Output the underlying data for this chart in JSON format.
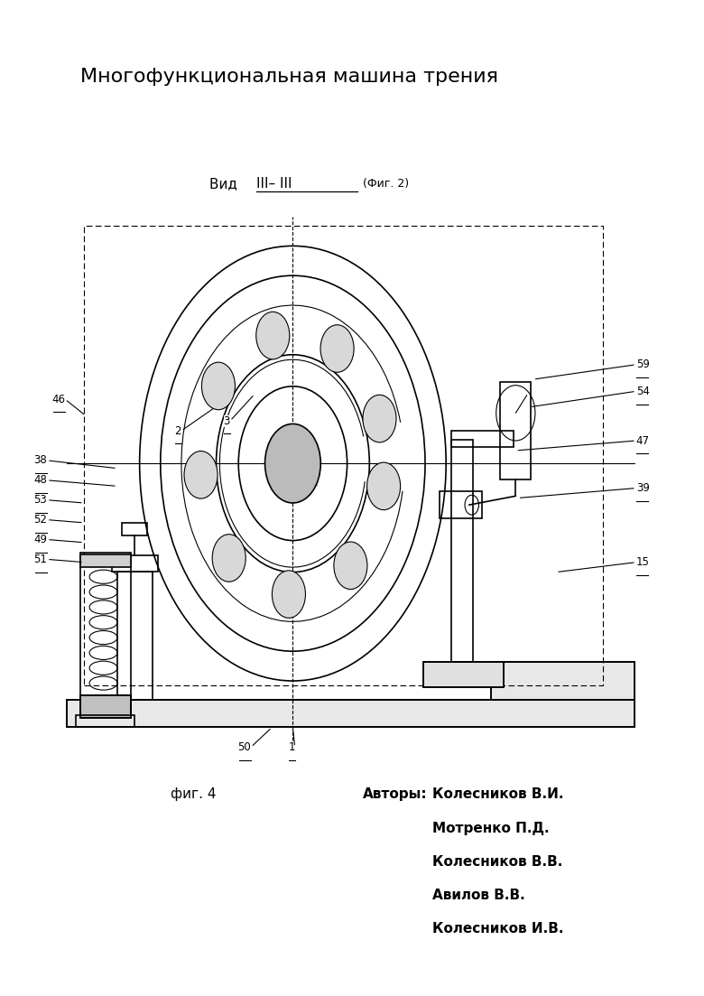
{
  "title": "Многофункциональная машина трения",
  "fig_label": "фиг. 4",
  "authors_label": "Авторы:",
  "authors": [
    "Колесников В.И.",
    "Мотренко П.Д.",
    "Колесников В.В.",
    "Авилов В.В.",
    "Колесников И.В."
  ],
  "bg_color": "#ffffff",
  "line_color": "#000000"
}
